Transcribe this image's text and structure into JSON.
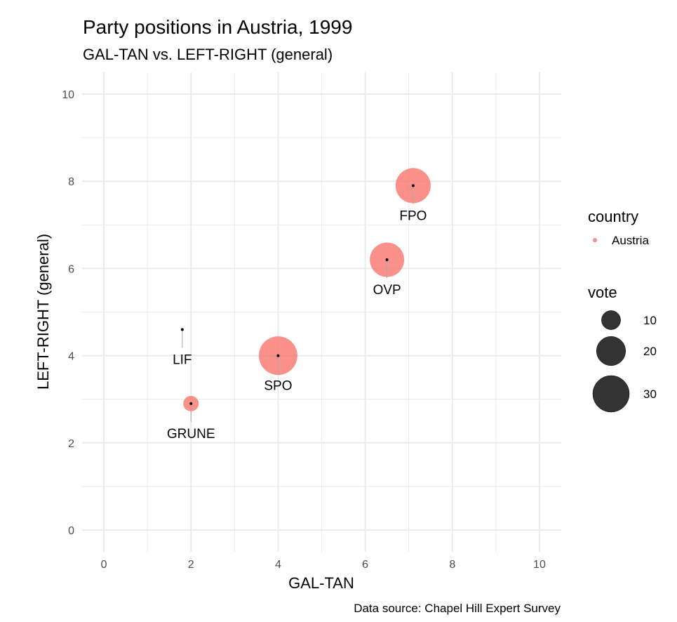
{
  "chart_data": {
    "type": "scatter",
    "title": "Party positions in Austria, 1999",
    "subtitle": "GAL-TAN vs. LEFT-RIGHT (general)",
    "xlabel": "GAL-TAN",
    "ylabel": "LEFT-RIGHT (general)",
    "caption": "Data source: Chapel Hill Expert Survey",
    "xlim": [
      -0.5,
      10.5
    ],
    "ylim": [
      -0.5,
      10.5
    ],
    "xticks": [
      "0",
      "2",
      "4",
      "6",
      "8",
      "10"
    ],
    "yticks": [
      "0",
      "2",
      "4",
      "6",
      "8",
      "10"
    ],
    "grid": true,
    "point_color": "#F8766D",
    "points": [
      {
        "party": "FPO",
        "x": 7.1,
        "y": 7.9,
        "vote": 27.9
      },
      {
        "party": "OVP",
        "x": 6.5,
        "y": 6.2,
        "vote": 26.9
      },
      {
        "party": "SPO",
        "x": 4.0,
        "y": 4.0,
        "vote": 33.2
      },
      {
        "party": "LIF",
        "x": 1.8,
        "y": 4.6,
        "vote": null
      },
      {
        "party": "GRUNE",
        "x": 2.0,
        "y": 2.9,
        "vote": 7.4
      }
    ],
    "legend": {
      "placement": "right",
      "color_title": "country",
      "color_entries": [
        "Austria"
      ],
      "size_title": "vote",
      "size_entries": [
        {
          "label": "10",
          "value": 10
        },
        {
          "label": "20",
          "value": 20
        },
        {
          "label": "30",
          "value": 30
        }
      ]
    }
  }
}
